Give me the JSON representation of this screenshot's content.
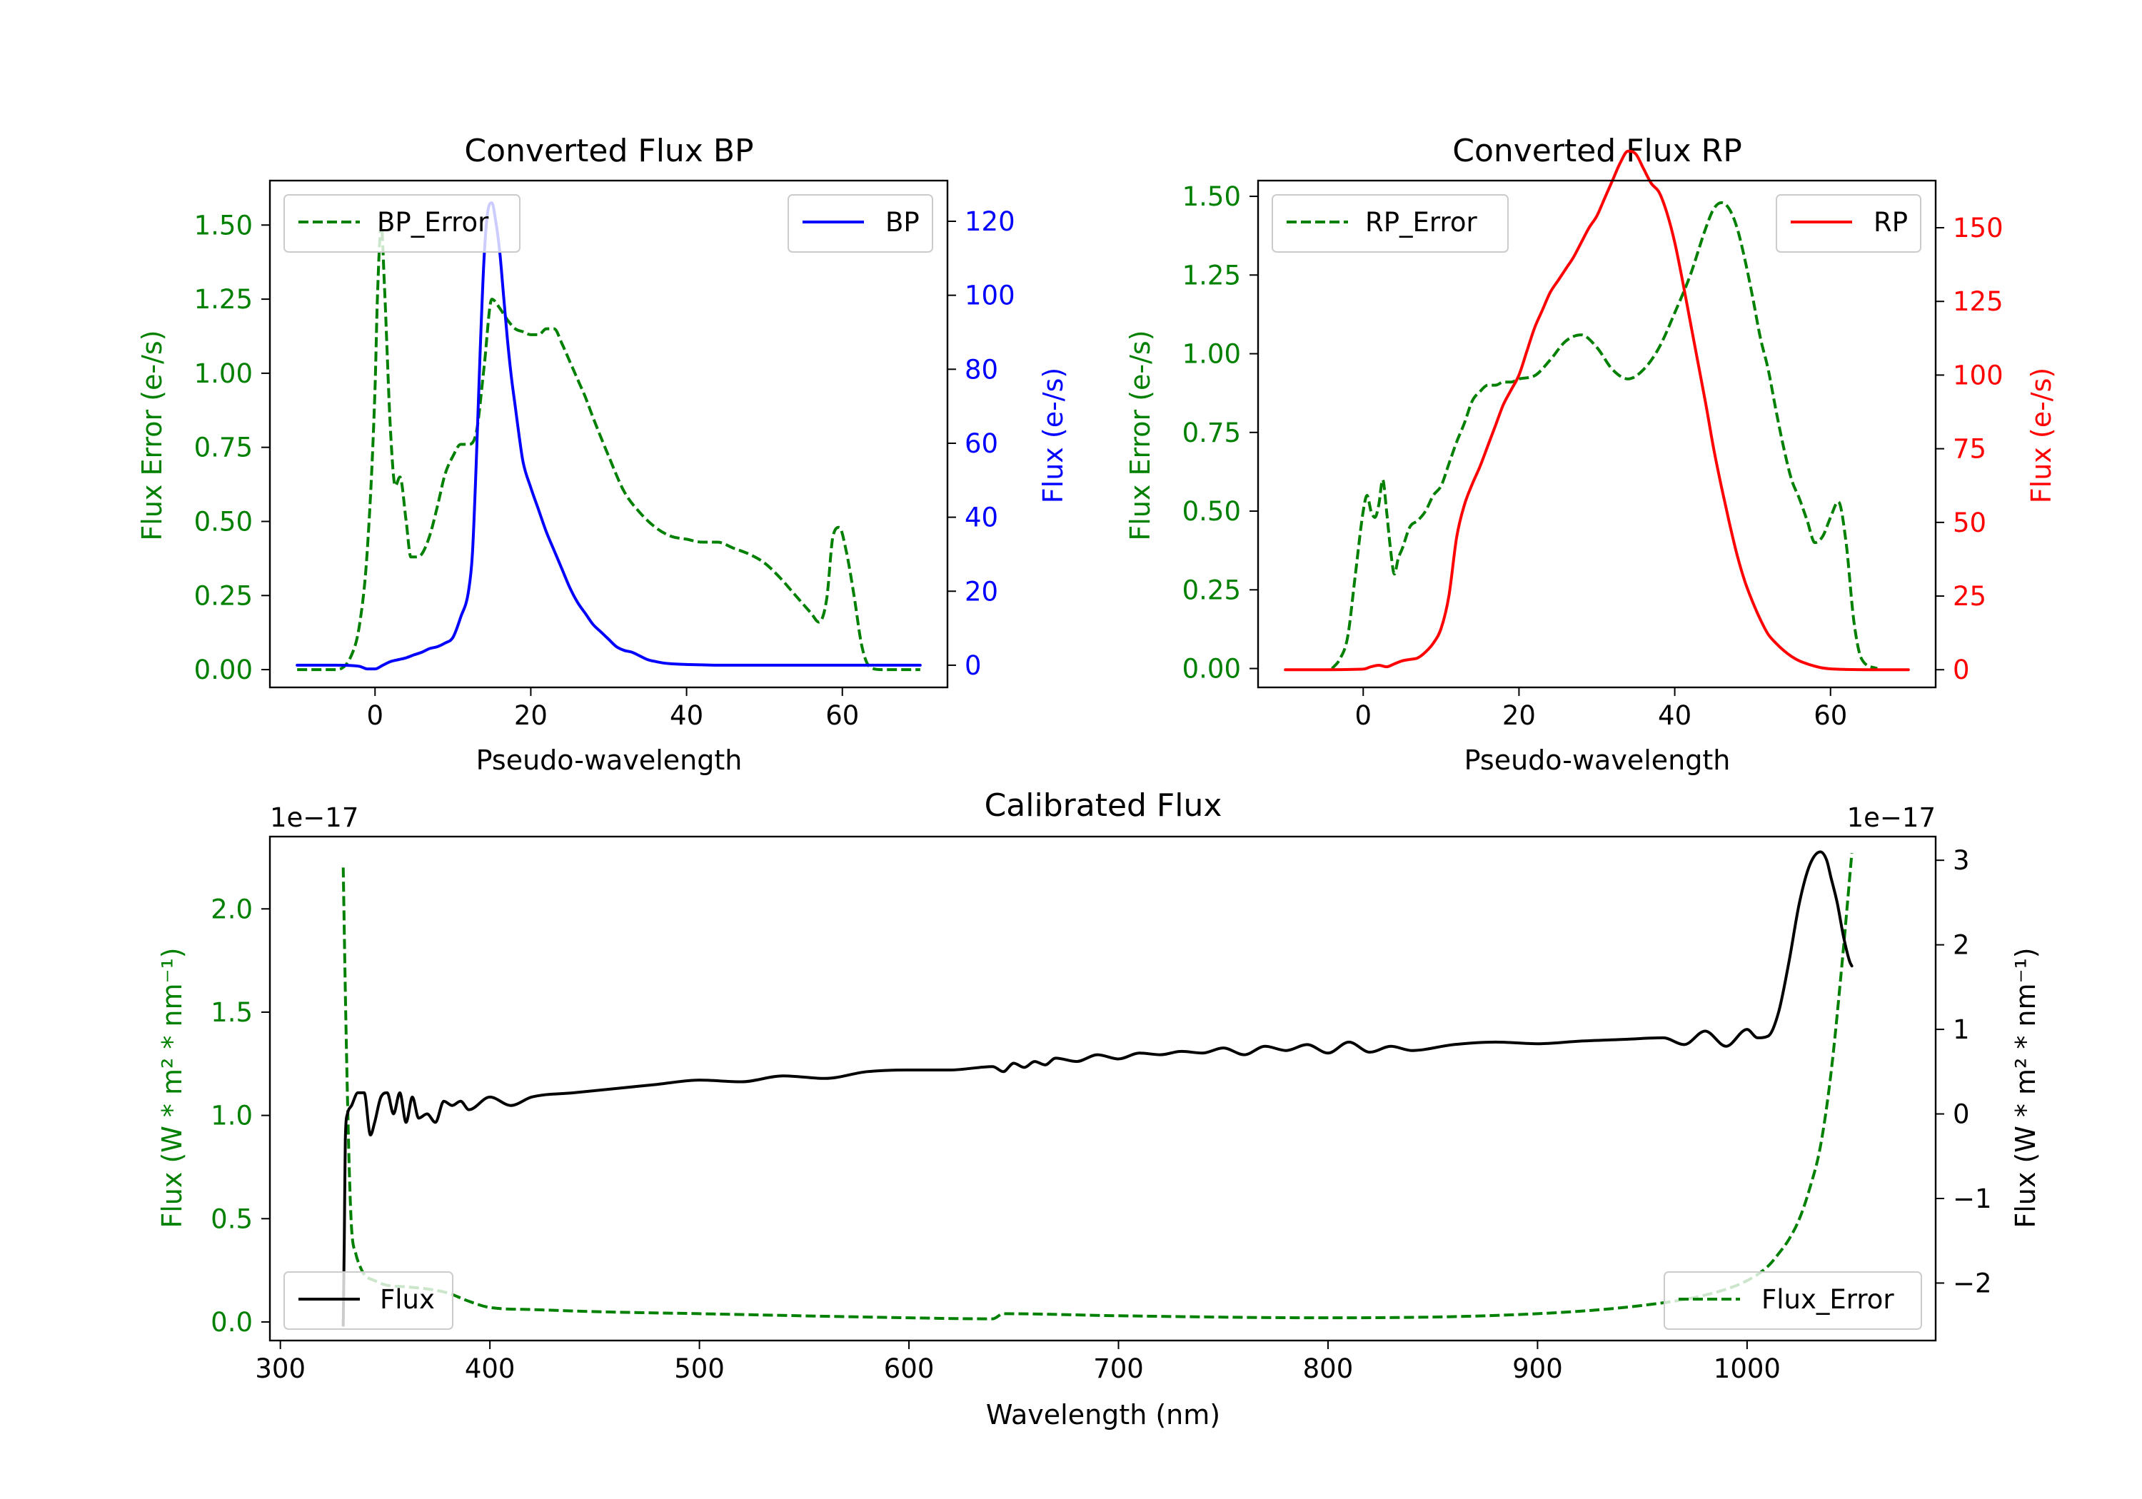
{
  "colors": {
    "error": "#008000",
    "bp": "#0000ff",
    "rp": "#ff0000",
    "flux": "#000000",
    "axes": "#000000"
  },
  "chart_data": [
    {
      "type": "line",
      "title": "Converted Flux BP",
      "xlabel": "Pseudo-wavelength",
      "ylabel_left": "Flux Error (e-/s)",
      "ylabel_right": "Flux (e-/s)",
      "xlim": [
        -13.5,
        73.5
      ],
      "ylim_left": [
        -0.06,
        1.65
      ],
      "ylim_right": [
        -6,
        131
      ],
      "xticks": [
        "0",
        "20",
        "40",
        "60"
      ],
      "yticks_left": [
        "0.00",
        "0.25",
        "0.50",
        "0.75",
        "1.00",
        "1.25",
        "1.50"
      ],
      "yticks_right": [
        "0",
        "20",
        "40",
        "60",
        "80",
        "100",
        "120"
      ],
      "legend": {
        "left": "BP_Error",
        "right": "BP"
      },
      "series": [
        {
          "name": "BP_Error",
          "axis": "left",
          "style": "dashed",
          "x": [
            -10,
            -5,
            -3,
            -2,
            -1,
            0,
            0.3,
            0.8,
            1.2,
            2,
            2.6,
            3.2,
            4,
            4.6,
            5.2,
            6,
            7,
            8,
            9,
            10,
            11,
            12,
            13,
            14,
            15,
            16,
            17,
            18,
            19,
            20,
            21,
            22,
            23,
            24,
            25,
            26,
            27,
            28,
            30,
            32,
            34,
            36,
            38,
            40,
            42,
            44,
            46,
            48,
            50,
            52,
            54,
            56,
            57,
            58,
            58.8,
            59.6,
            60.5,
            61.5,
            62.5,
            63.5,
            65,
            70
          ],
          "values": [
            0,
            0,
            0.05,
            0.15,
            0.4,
            0.95,
            1.25,
            1.5,
            1.3,
            0.8,
            0.62,
            0.65,
            0.5,
            0.38,
            0.38,
            0.39,
            0.45,
            0.55,
            0.66,
            0.72,
            0.76,
            0.76,
            0.8,
            1.02,
            1.25,
            1.22,
            1.18,
            1.15,
            1.14,
            1.13,
            1.13,
            1.15,
            1.15,
            1.1,
            1.04,
            0.98,
            0.92,
            0.85,
            0.72,
            0.6,
            0.53,
            0.48,
            0.45,
            0.44,
            0.43,
            0.43,
            0.41,
            0.39,
            0.36,
            0.31,
            0.25,
            0.19,
            0.16,
            0.24,
            0.45,
            0.48,
            0.4,
            0.25,
            0.08,
            0.01,
            0,
            0
          ]
        },
        {
          "name": "BP",
          "axis": "right",
          "style": "solid",
          "x": [
            -10,
            -5,
            -2,
            -1,
            0,
            1,
            2,
            3,
            4,
            5,
            6,
            7,
            8,
            9,
            10,
            11,
            12,
            12.5,
            13,
            13.5,
            14,
            14.5,
            15,
            15.5,
            16,
            16.5,
            17,
            17.5,
            18,
            18.5,
            19,
            20,
            21,
            22,
            23,
            24,
            25,
            26,
            27,
            28,
            29,
            30,
            31,
            32,
            33,
            34,
            35,
            36,
            37,
            38,
            40,
            42,
            44,
            46,
            48,
            50,
            52,
            55,
            58,
            62,
            66,
            70
          ],
          "values": [
            0,
            0,
            -0.3,
            -1,
            -1,
            0,
            1,
            1.5,
            2,
            2.8,
            3.5,
            4.5,
            5,
            6,
            7.5,
            13,
            20,
            30,
            55,
            85,
            110,
            123,
            125,
            120,
            112,
            100,
            88,
            78,
            70,
            62,
            55,
            48,
            42,
            36,
            31,
            26,
            21,
            17,
            14,
            11,
            9,
            7,
            5,
            4,
            3.5,
            2.5,
            1.5,
            1,
            0.6,
            0.4,
            0.2,
            0.1,
            0,
            0,
            0,
            0,
            0,
            0,
            0,
            0,
            0,
            0
          ]
        }
      ]
    },
    {
      "type": "line",
      "title": "Converted Flux RP",
      "xlabel": "Pseudo-wavelength",
      "ylabel_left": "Flux Error (e-/s)",
      "ylabel_right": "Flux (e-/s)",
      "xlim": [
        -13.5,
        73.5
      ],
      "ylim_left": [
        -0.06,
        1.55
      ],
      "ylim_right": [
        -6,
        166
      ],
      "xticks": [
        "0",
        "20",
        "40",
        "60"
      ],
      "yticks_left": [
        "0.00",
        "0.25",
        "0.50",
        "0.75",
        "1.00",
        "1.25",
        "1.50"
      ],
      "yticks_right": [
        "0",
        "25",
        "50",
        "75",
        "100",
        "125",
        "150"
      ],
      "legend": {
        "left": "RP_Error",
        "right": "RP"
      },
      "series": [
        {
          "name": "RP_Error",
          "axis": "left",
          "style": "dashed",
          "x": [
            -4,
            -3,
            -2,
            -1,
            0,
            0.5,
            1,
            1.5,
            2,
            2.5,
            3,
            3.5,
            4,
            4.5,
            5,
            6,
            7,
            8,
            9,
            10,
            11,
            12,
            13,
            14,
            15,
            16,
            17,
            18,
            19,
            20,
            22,
            24,
            26,
            28,
            30,
            32,
            34,
            36,
            38,
            40,
            42,
            44,
            45,
            46,
            47,
            48,
            49,
            50,
            51,
            52,
            53,
            54,
            55,
            56,
            57,
            58,
            59,
            60,
            61,
            62,
            63,
            64,
            66
          ],
          "values": [
            0,
            0.03,
            0.1,
            0.3,
            0.5,
            0.55,
            0.5,
            0.48,
            0.52,
            0.6,
            0.5,
            0.38,
            0.3,
            0.35,
            0.38,
            0.45,
            0.47,
            0.5,
            0.55,
            0.58,
            0.65,
            0.72,
            0.78,
            0.85,
            0.88,
            0.9,
            0.9,
            0.91,
            0.91,
            0.92,
            0.93,
            0.98,
            1.04,
            1.06,
            1.02,
            0.95,
            0.92,
            0.95,
            1.02,
            1.13,
            1.25,
            1.4,
            1.46,
            1.48,
            1.46,
            1.4,
            1.3,
            1.18,
            1.05,
            0.95,
            0.82,
            0.7,
            0.6,
            0.54,
            0.47,
            0.4,
            0.42,
            0.48,
            0.53,
            0.4,
            0.15,
            0.03,
            0
          ]
        },
        {
          "name": "RP",
          "axis": "right",
          "style": "solid",
          "x": [
            -10,
            -5,
            0,
            1,
            2,
            3,
            4,
            5,
            6,
            7,
            8,
            9,
            10,
            11,
            12,
            13,
            14,
            15,
            16,
            17,
            18,
            19,
            20,
            21,
            22,
            23,
            24,
            25,
            26,
            27,
            28,
            29,
            30,
            31,
            32,
            33,
            34,
            35,
            36,
            37,
            38,
            39,
            40,
            41,
            42,
            43,
            44,
            45,
            46,
            47,
            48,
            49,
            50,
            51,
            52,
            53,
            54,
            55,
            56,
            57,
            58,
            59,
            60,
            62,
            65,
            70
          ],
          "values": [
            0,
            0,
            0.2,
            1,
            1.5,
            1,
            2,
            3,
            3.5,
            4,
            6,
            9,
            14,
            25,
            45,
            56,
            63,
            69,
            76,
            83,
            90,
            95,
            100,
            108,
            116,
            122,
            128,
            132,
            136,
            140,
            145,
            150,
            154,
            160,
            166,
            172,
            176,
            175,
            170,
            165,
            162,
            155,
            145,
            132,
            118,
            104,
            90,
            75,
            62,
            50,
            39,
            30,
            23,
            17,
            12,
            9,
            6.5,
            4.5,
            3,
            2,
            1.2,
            0.6,
            0.3,
            0.1,
            0,
            0
          ]
        }
      ]
    },
    {
      "type": "line",
      "title": "Calibrated Flux",
      "xlabel": "Wavelength (nm)",
      "ylabel_left": "Flux (W * m² * nm⁻¹)",
      "ylabel_right": "Flux (W * m² * nm⁻¹)",
      "offset_left": "1e−17",
      "offset_right": "1e−17",
      "xlim": [
        295,
        1090
      ],
      "ylim_left": [
        -0.09,
        2.35
      ],
      "ylim_right": [
        -2.68,
        3.28
      ],
      "xticks": [
        "300",
        "400",
        "500",
        "600",
        "700",
        "800",
        "900",
        "1000"
      ],
      "yticks_left": [
        "0.0",
        "0.5",
        "1.0",
        "1.5",
        "2.0"
      ],
      "yticks_right": [
        "−2",
        "−1",
        "0",
        "1",
        "2",
        "3"
      ],
      "legend": {
        "left": "Flux",
        "right": "Flux_Error"
      },
      "series": [
        {
          "name": "Flux_Error",
          "axis": "left",
          "style": "dashed",
          "x": [
            330,
            331,
            332,
            333,
            334,
            336,
            338,
            340,
            345,
            350,
            360,
            370,
            380,
            390,
            400,
            420,
            450,
            500,
            600,
            640,
            645,
            700,
            800,
            900,
            950,
            980,
            1000,
            1010,
            1015,
            1020,
            1025,
            1030,
            1035,
            1040,
            1045,
            1050
          ],
          "values": [
            2.2,
            1.6,
            1.1,
            0.7,
            0.45,
            0.33,
            0.27,
            0.23,
            0.2,
            0.18,
            0.17,
            0.16,
            0.14,
            0.1,
            0.07,
            0.06,
            0.05,
            0.04,
            0.02,
            0.015,
            0.04,
            0.03,
            0.02,
            0.04,
            0.08,
            0.13,
            0.2,
            0.27,
            0.33,
            0.4,
            0.5,
            0.65,
            0.85,
            1.2,
            1.7,
            2.27
          ]
        },
        {
          "name": "Flux",
          "axis": "right",
          "style": "solid",
          "x": [
            330,
            330.5,
            331,
            332,
            334,
            337,
            340,
            343,
            345,
            348,
            351,
            354,
            357,
            360,
            363,
            366,
            370,
            374,
            378,
            382,
            386,
            390,
            400,
            410,
            420,
            440,
            460,
            480,
            500,
            520,
            540,
            560,
            580,
            600,
            620,
            640,
            645,
            650,
            655,
            660,
            665,
            670,
            680,
            690,
            700,
            710,
            720,
            730,
            740,
            750,
            760,
            770,
            780,
            790,
            800,
            810,
            820,
            830,
            840,
            860,
            880,
            900,
            920,
            940,
            960,
            970,
            980,
            990,
            1000,
            1005,
            1010,
            1015,
            1020,
            1025,
            1030,
            1035,
            1038,
            1040,
            1043,
            1046,
            1049,
            1050
          ],
          "values": [
            -2.5,
            -1.5,
            -0.3,
            0,
            0.1,
            0.25,
            0.25,
            -0.25,
            -0.1,
            0.2,
            0.25,
            0.0,
            0.25,
            -0.1,
            0.2,
            -0.05,
            0.0,
            -0.1,
            0.15,
            0.1,
            0.15,
            0.05,
            0.2,
            0.1,
            0.2,
            0.25,
            0.3,
            0.35,
            0.4,
            0.38,
            0.45,
            0.42,
            0.5,
            0.52,
            0.52,
            0.56,
            0.5,
            0.6,
            0.55,
            0.62,
            0.58,
            0.66,
            0.62,
            0.7,
            0.65,
            0.72,
            0.7,
            0.74,
            0.72,
            0.78,
            0.7,
            0.8,
            0.75,
            0.82,
            0.72,
            0.85,
            0.73,
            0.8,
            0.75,
            0.82,
            0.85,
            0.83,
            0.86,
            0.88,
            0.9,
            0.82,
            0.98,
            0.8,
            1.0,
            0.9,
            0.92,
            1.2,
            1.8,
            2.5,
            2.95,
            3.1,
            3.0,
            2.8,
            2.5,
            2.1,
            1.8,
            1.75
          ]
        }
      ]
    }
  ]
}
